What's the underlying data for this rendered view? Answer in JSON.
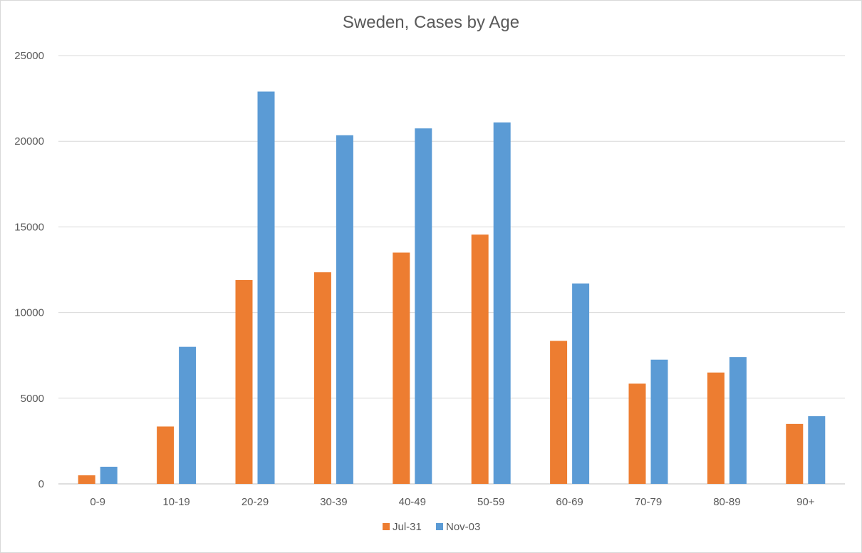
{
  "chart_data": {
    "type": "bar",
    "title": "Sweden, Cases by Age",
    "xlabel": "",
    "ylabel": "",
    "categories": [
      "0-9",
      "10-19",
      "20-29",
      "30-39",
      "40-49",
      "50-59",
      "60-69",
      "70-79",
      "80-89",
      "90+"
    ],
    "series": [
      {
        "name": "Jul-31",
        "color": "#ED7D31",
        "values": [
          500,
          3350,
          11900,
          12350,
          13500,
          14550,
          8350,
          5850,
          6500,
          3500
        ]
      },
      {
        "name": "Nov-03",
        "color": "#5B9BD5",
        "values": [
          1000,
          8000,
          22900,
          20350,
          20750,
          21100,
          11700,
          7250,
          7400,
          3950
        ]
      }
    ],
    "ylim": [
      0,
      25000
    ],
    "yticks": [
      0,
      5000,
      10000,
      15000,
      20000,
      25000
    ],
    "grid": true,
    "legend_position": "bottom"
  }
}
